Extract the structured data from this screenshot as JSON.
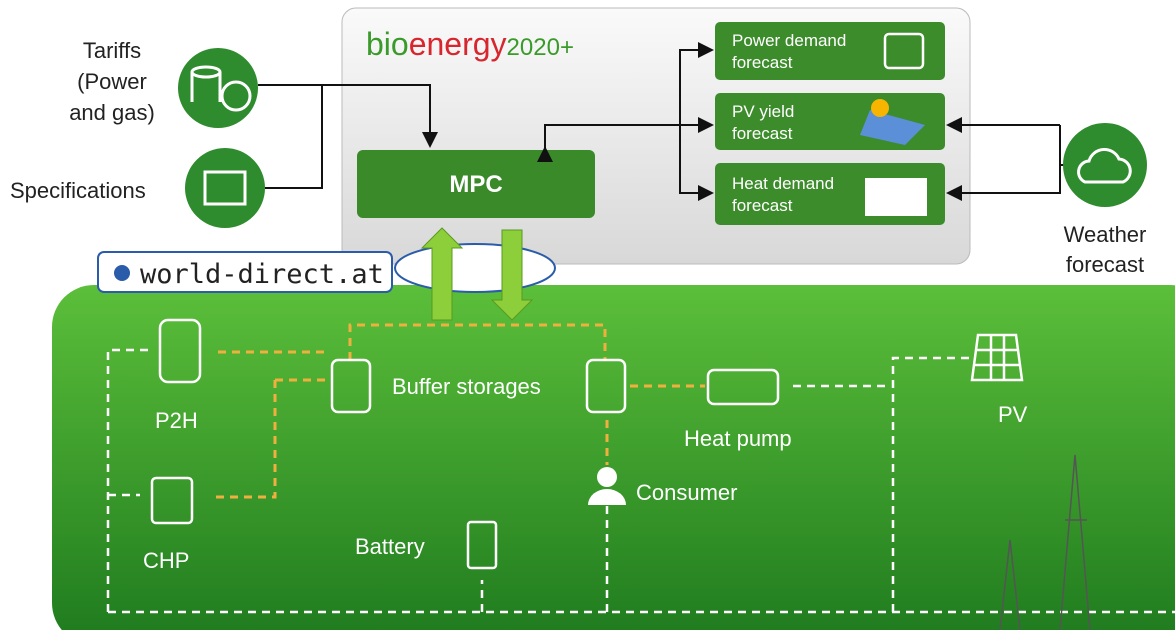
{
  "inputs": {
    "tariffs": [
      "Tariffs",
      "(Power",
      "and gas)"
    ],
    "specifications": "Specifications"
  },
  "logo": {
    "parts": [
      "bio",
      "energy",
      "2020+"
    ]
  },
  "controller": "MPC",
  "forecasts": [
    [
      "Power demand",
      "forecast"
    ],
    [
      "PV yield",
      "forecast"
    ],
    [
      "Heat demand",
      "forecast"
    ]
  ],
  "weather": [
    "Weather",
    "forecast"
  ],
  "provider": "world-direct.at",
  "site": {
    "buffer": "Buffer storages",
    "p2h": "P2H",
    "chp": "CHP",
    "battery": "Battery",
    "heat_pump": "Heat pump",
    "consumer": "Consumer",
    "pv": "PV"
  }
}
